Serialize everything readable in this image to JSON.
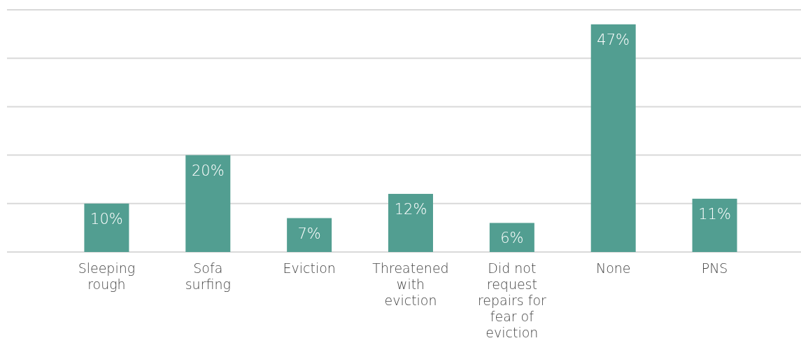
{
  "chart_data": {
    "type": "bar",
    "categories": [
      "Sleeping rough",
      "Sofa surfing",
      "Eviction",
      "Threatened with eviction",
      "Did not request repairs for fear of eviction",
      "None",
      "PNS"
    ],
    "values": [
      10,
      20,
      7,
      12,
      6,
      47,
      11
    ],
    "color": "#529e91",
    "ylim": [
      0,
      50
    ],
    "yticks": [
      {
        "value": 0,
        "label": null
      },
      {
        "value": 10,
        "label": null
      },
      {
        "value": 20,
        "label": null
      },
      {
        "value": 30,
        "label": null
      },
      {
        "value": 40,
        "label": null
      },
      {
        "value": 50,
        "label": null
      }
    ],
    "grid": "y",
    "tick_labels": "x",
    "data_labels": true,
    "value_labels": [
      "10%",
      "20%",
      "7%",
      "12%",
      "6%",
      "47%",
      "11%"
    ]
  }
}
